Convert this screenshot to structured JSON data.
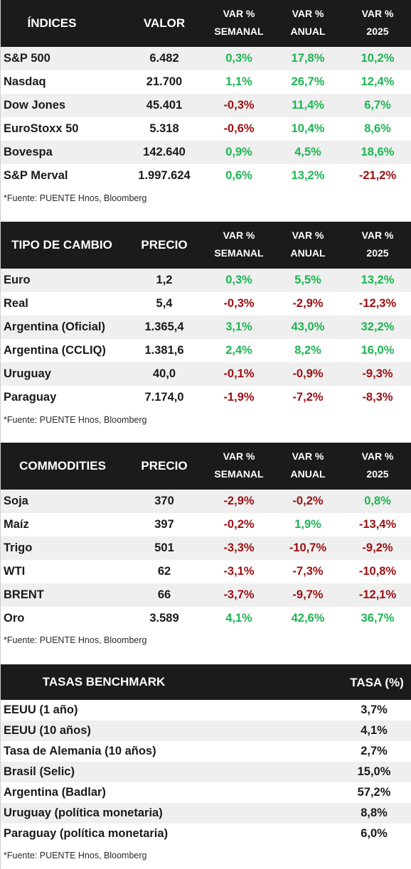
{
  "indices": {
    "headers": {
      "name": "ÍNDICES",
      "value": "VALOR",
      "weekly_1": "VAR %",
      "weekly_2": "SEMANAL",
      "annual_1": "VAR %",
      "annual_2": "ANUAL",
      "ytd_1": "VAR %",
      "ytd_2": "2025"
    },
    "rows": [
      {
        "name": "S&P 500",
        "value": "6.482",
        "weekly": "0,3%",
        "annual": "17,8%",
        "ytd": "10,2%"
      },
      {
        "name": "Nasdaq",
        "value": "21.700",
        "weekly": "1,1%",
        "annual": "26,7%",
        "ytd": "12,4%"
      },
      {
        "name": "Dow Jones",
        "value": "45.401",
        "weekly": "-0,3%",
        "annual": "11,4%",
        "ytd": "6,7%"
      },
      {
        "name": "EuroStoxx 50",
        "value": "5.318",
        "weekly": "-0,6%",
        "annual": "10,4%",
        "ytd": "8,6%"
      },
      {
        "name": "Bovespa",
        "value": "142.640",
        "weekly": "0,9%",
        "annual": "4,5%",
        "ytd": "18,6%"
      },
      {
        "name": "S&P Merval",
        "value": "1.997.624",
        "weekly": "0,6%",
        "annual": "13,2%",
        "ytd": "-21,2%"
      }
    ],
    "source": "*Fuente: PUENTE Hnos, Bloomberg"
  },
  "fx": {
    "headers": {
      "name": "TIPO DE CAMBIO",
      "value": "PRECIO",
      "weekly_1": "VAR %",
      "weekly_2": "SEMANAL",
      "annual_1": "VAR %",
      "annual_2": "ANUAL",
      "ytd_1": "VAR %",
      "ytd_2": "2025"
    },
    "rows": [
      {
        "name": "Euro",
        "value": "1,2",
        "weekly": "0,3%",
        "annual": "5,5%",
        "ytd": "13,2%"
      },
      {
        "name": "Real",
        "value": "5,4",
        "weekly": "-0,3%",
        "annual": "-2,9%",
        "ytd": "-12,3%"
      },
      {
        "name": "Argentina (Oficial)",
        "value": "1.365,4",
        "weekly": "3,1%",
        "annual": "43,0%",
        "ytd": "32,2%"
      },
      {
        "name": "Argentina (CCLIQ)",
        "value": "1.381,6",
        "weekly": "2,4%",
        "annual": "8,2%",
        "ytd": "16,0%"
      },
      {
        "name": "Uruguay",
        "value": "40,0",
        "weekly": "-0,1%",
        "annual": "-0,9%",
        "ytd": "-9,3%"
      },
      {
        "name": "Paraguay",
        "value": "7.174,0",
        "weekly": "-1,9%",
        "annual": "-7,2%",
        "ytd": "-8,3%"
      }
    ],
    "source": "*Fuente: PUENTE Hnos, Bloomberg"
  },
  "commodities": {
    "headers": {
      "name": "COMMODITIES",
      "value": "PRECIO",
      "weekly_1": "VAR %",
      "weekly_2": "SEMANAL",
      "annual_1": "VAR %",
      "annual_2": "ANUAL",
      "ytd_1": "VAR %",
      "ytd_2": "2025"
    },
    "rows": [
      {
        "name": "Soja",
        "value": "370",
        "weekly": "-2,9%",
        "annual": "-0,2%",
        "ytd": "0,8%"
      },
      {
        "name": "Maíz",
        "value": "397",
        "weekly": "-0,2%",
        "annual": "1,9%",
        "ytd": "-13,4%"
      },
      {
        "name": "Trigo",
        "value": "501",
        "weekly": "-3,3%",
        "annual": "-10,7%",
        "ytd": "-9,2%"
      },
      {
        "name": "WTI",
        "value": "62",
        "weekly": "-3,1%",
        "annual": "-7,3%",
        "ytd": "-10,8%"
      },
      {
        "name": "BRENT",
        "value": "66",
        "weekly": "-3,7%",
        "annual": "-9,7%",
        "ytd": "-12,1%"
      },
      {
        "name": "Oro",
        "value": "3.589",
        "weekly": "4,1%",
        "annual": "42,6%",
        "ytd": "36,7%"
      }
    ],
    "source": "*Fuente: PUENTE Hnos, Bloomberg"
  },
  "rates": {
    "headers": {
      "name": "TASAS BENCHMARK",
      "rate": "TASA (%)"
    },
    "rows": [
      {
        "name": "EEUU (1 año)",
        "rate": "3,7%"
      },
      {
        "name": "EEUU (10 años)",
        "rate": "4,1%"
      },
      {
        "name": "Tasa de Alemania (10 años)",
        "rate": "2,7%"
      },
      {
        "name": "Brasil (Selic)",
        "rate": "15,0%"
      },
      {
        "name": "Argentina (Badlar)",
        "rate": "57,2%"
      },
      {
        "name": "Uruguay (política monetaria)",
        "rate": "8,8%"
      },
      {
        "name": "Paraguay (política monetaria)",
        "rate": "6,0%"
      }
    ],
    "source": "*Fuente: PUENTE Hnos, Bloomberg"
  },
  "colors": {
    "positive": "#1db552",
    "negative": "#9b0f12",
    "header_bg": "#1b1b1b",
    "alt_row": "#efefef"
  }
}
